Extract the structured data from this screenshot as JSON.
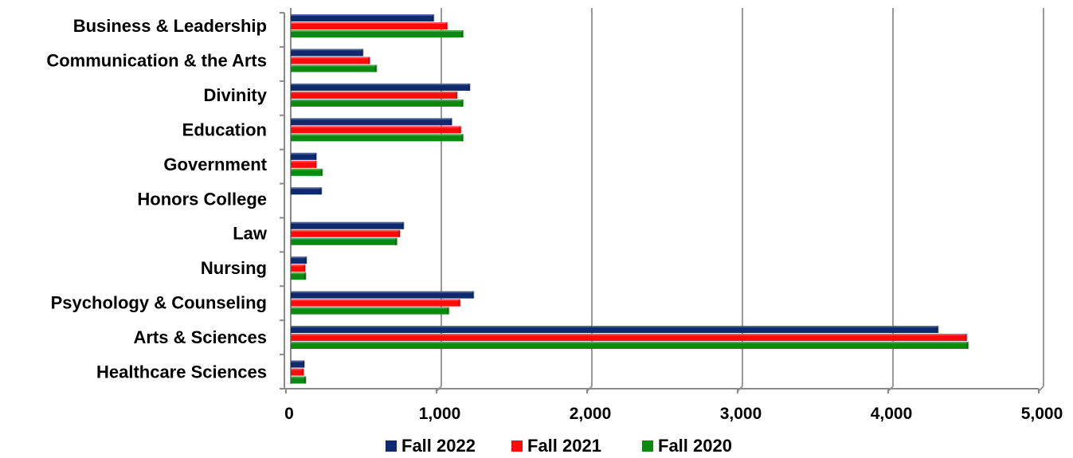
{
  "chart_data": {
    "type": "bar",
    "orientation": "horizontal",
    "categories": [
      "Business & Leadership",
      "Communication & the Arts",
      "Divinity",
      "Education",
      "Government",
      "Honors College",
      "Law",
      "Nursing",
      "Psychology & Counseling",
      "Arts & Sciences",
      "Healthcare Sciences"
    ],
    "series": [
      {
        "name": "Fall 2022",
        "color": "#0d2a6e",
        "values": [
          950,
          480,
          1190,
          1070,
          170,
          205,
          750,
          105,
          1215,
          4300,
          90
        ]
      },
      {
        "name": "Fall 2021",
        "color": "#ff0a0a",
        "values": [
          1040,
          525,
          1105,
          1130,
          170,
          0,
          725,
          95,
          1125,
          4490,
          85
        ]
      },
      {
        "name": "Fall 2020",
        "color": "#0a8a10",
        "values": [
          1145,
          570,
          1145,
          1145,
          210,
          0,
          705,
          100,
          1050,
          4500,
          100
        ]
      }
    ],
    "xlim": [
      0,
      5000
    ],
    "xticks": [
      "0",
      "1,000",
      "2,000",
      "3,000",
      "4,000",
      "5,000"
    ],
    "xtick_values": [
      0,
      1000,
      2000,
      3000,
      4000,
      5000
    ],
    "grid": "vertical",
    "legend": "bottom",
    "title": "",
    "xlabel": "",
    "ylabel": ""
  }
}
